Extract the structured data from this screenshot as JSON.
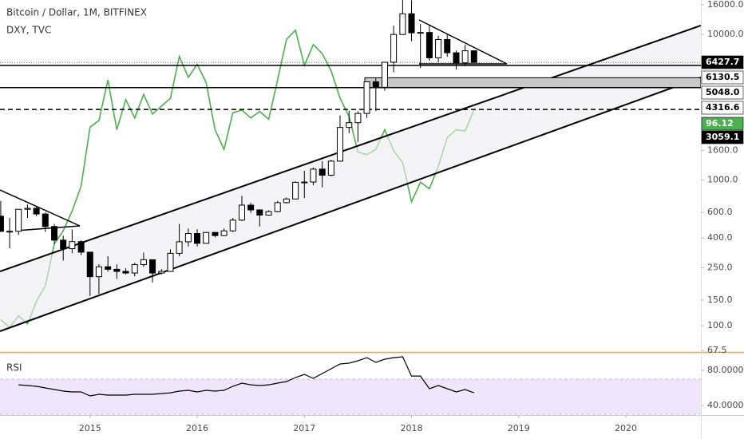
{
  "chart_data": {
    "type": "candlestick",
    "title": "Bitcoin / Dollar, 1M, BITFINEX",
    "log": true,
    "colors": {
      "up": "#ffffff",
      "down": "#000000",
      "border": "#000000"
    },
    "xlim": [
      2014.16,
      2020.7
    ],
    "xticks": [
      2015,
      2016,
      2017,
      2018,
      2019,
      2020
    ],
    "ylim": [
      66.8,
      17260
    ],
    "yticks": [
      {
        "value": 16000,
        "label": "16000.0"
      },
      {
        "value": 10000,
        "label": "10000.0"
      },
      {
        "value": 1600,
        "label": "1600.0"
      },
      {
        "value": 1000,
        "label": "1000.0"
      },
      {
        "value": 600,
        "label": "600.0"
      },
      {
        "value": 400,
        "label": "400.0"
      },
      {
        "value": 250,
        "label": "250.0"
      },
      {
        "value": 150,
        "label": "150.0"
      },
      {
        "value": 100,
        "label": "100.0"
      },
      67.5
    ],
    "x": [
      2014.167,
      2014.25,
      2014.333,
      2014.417,
      2014.5,
      2014.583,
      2014.667,
      2014.75,
      2014.833,
      2014.917,
      2015,
      2015.083,
      2015.167,
      2015.25,
      2015.333,
      2015.417,
      2015.5,
      2015.583,
      2015.667,
      2015.75,
      2015.833,
      2015.917,
      2016,
      2016.083,
      2016.167,
      2016.25,
      2016.333,
      2016.417,
      2016.5,
      2016.583,
      2016.667,
      2016.75,
      2016.833,
      2016.917,
      2017,
      2017.083,
      2017.167,
      2017.25,
      2017.333,
      2017.417,
      2017.5,
      2017.583,
      2017.667,
      2017.75,
      2017.833,
      2017.917,
      2018,
      2018.083,
      2018.167,
      2018.25,
      2018.333,
      2018.417,
      2018.5,
      2018.583
    ],
    "open": [
      565,
      445,
      445,
      630,
      640,
      585,
      480,
      387,
      338,
      378,
      320,
      217,
      254,
      244,
      236,
      230,
      263,
      284,
      230,
      236,
      314,
      377,
      430,
      368,
      437,
      416,
      448,
      531,
      673,
      624,
      575,
      608,
      700,
      742,
      966,
      970,
      1190,
      1080,
      1350,
      2300,
      2480,
      2870,
      4730,
      4340,
      6450,
      10000,
      13880,
      10270,
      10330,
      6920,
      9240,
      7490,
      6390,
      7730
    ],
    "high": [
      720,
      550,
      630,
      680,
      660,
      600,
      500,
      415,
      458,
      385,
      320,
      265,
      300,
      264,
      248,
      270,
      318,
      285,
      245,
      335,
      500,
      465,
      460,
      440,
      440,
      465,
      550,
      780,
      700,
      630,
      620,
      720,
      760,
      980,
      1160,
      1220,
      1350,
      1380,
      2780,
      3000,
      2970,
      4760,
      5000,
      6470,
      11500,
      19700,
      17200,
      11800,
      11700,
      9800,
      9990,
      7760,
      8500,
      7750
    ],
    "low": [
      440,
      340,
      420,
      550,
      565,
      440,
      365,
      280,
      315,
      305,
      160,
      165,
      235,
      210,
      225,
      218,
      253,
      198,
      225,
      236,
      300,
      350,
      350,
      365,
      405,
      412,
      440,
      523,
      595,
      480,
      570,
      600,
      690,
      740,
      750,
      920,
      890,
      1060,
      1340,
      2100,
      1830,
      2670,
      2980,
      4120,
      5500,
      10000,
      9000,
      5880,
      6600,
      6420,
      7030,
      5760,
      6070,
      6400
    ],
    "close": [
      445,
      445,
      630,
      640,
      585,
      480,
      387,
      338,
      378,
      320,
      217,
      254,
      244,
      236,
      230,
      263,
      284,
      230,
      236,
      314,
      377,
      430,
      368,
      437,
      416,
      448,
      531,
      673,
      624,
      575,
      608,
      700,
      742,
      966,
      970,
      1190,
      1080,
      1350,
      2300,
      2480,
      2870,
      4730,
      4340,
      6450,
      10000,
      13880,
      10270,
      10330,
      6920,
      9240,
      7490,
      6390,
      7730,
      6427.7
    ],
    "y2lim": [
      77.7,
      104.5
    ],
    "series": [
      {
        "name": "DXY, TVC",
        "color": "#4caf50",
        "axis": "y2",
        "values": [
          80.1,
          79.5,
          80.4,
          79.8,
          81.5,
          82.7,
          85.9,
          86.9,
          88.4,
          90.3,
          94.8,
          95.3,
          98.4,
          94.6,
          96.9,
          95.5,
          97.3,
          95.8,
          96.4,
          97.0,
          100.2,
          98.6,
          99.6,
          98.2,
          94.6,
          93.1,
          95.9,
          96.1,
          95.5,
          96.0,
          95.4,
          98.4,
          101.5,
          102.2,
          99.5,
          101.1,
          100.4,
          99.1,
          97.0,
          95.6,
          92.9,
          92.7,
          93.1,
          94.6,
          93.0,
          92.1,
          89.1,
          90.6,
          90.1,
          91.8,
          94.0,
          94.6,
          94.5,
          96.12
        ]
      }
    ],
    "last_price": 6427.7,
    "levels": [
      6130.5,
      {
        "value": 5048,
        "label": "5048.0"
      },
      4316.6
    ],
    "dashed_level": 3059.1,
    "rsi": {
      "name": "RSI",
      "color": "#000000",
      "ylim": [
        29.1,
        99.1
      ],
      "yticks": [
        {
          "value": 80,
          "label": "80.0000"
        },
        {
          "value": 40,
          "label": "40.0000"
        }
      ],
      "band": [
        30,
        70
      ],
      "values": [
        null,
        null,
        63.6,
        62.7,
        61.8,
        60,
        58.2,
        56.4,
        55.5,
        55.5,
        50.9,
        52.7,
        51.8,
        51.8,
        51.8,
        52.7,
        52.7,
        52.7,
        53.6,
        54.5,
        56.4,
        57.3,
        55.5,
        57.3,
        56.4,
        57.3,
        61.8,
        65.5,
        63.6,
        62.7,
        63.6,
        65.5,
        67.3,
        71.8,
        75.5,
        70.9,
        76.4,
        81.8,
        87.3,
        88.2,
        90.9,
        94.5,
        89.1,
        92.7,
        94.5,
        95.5,
        73.6,
        73.6,
        59.1,
        62.7,
        59.1,
        55.5,
        58.2,
        54.5
      ]
    }
  }
}
